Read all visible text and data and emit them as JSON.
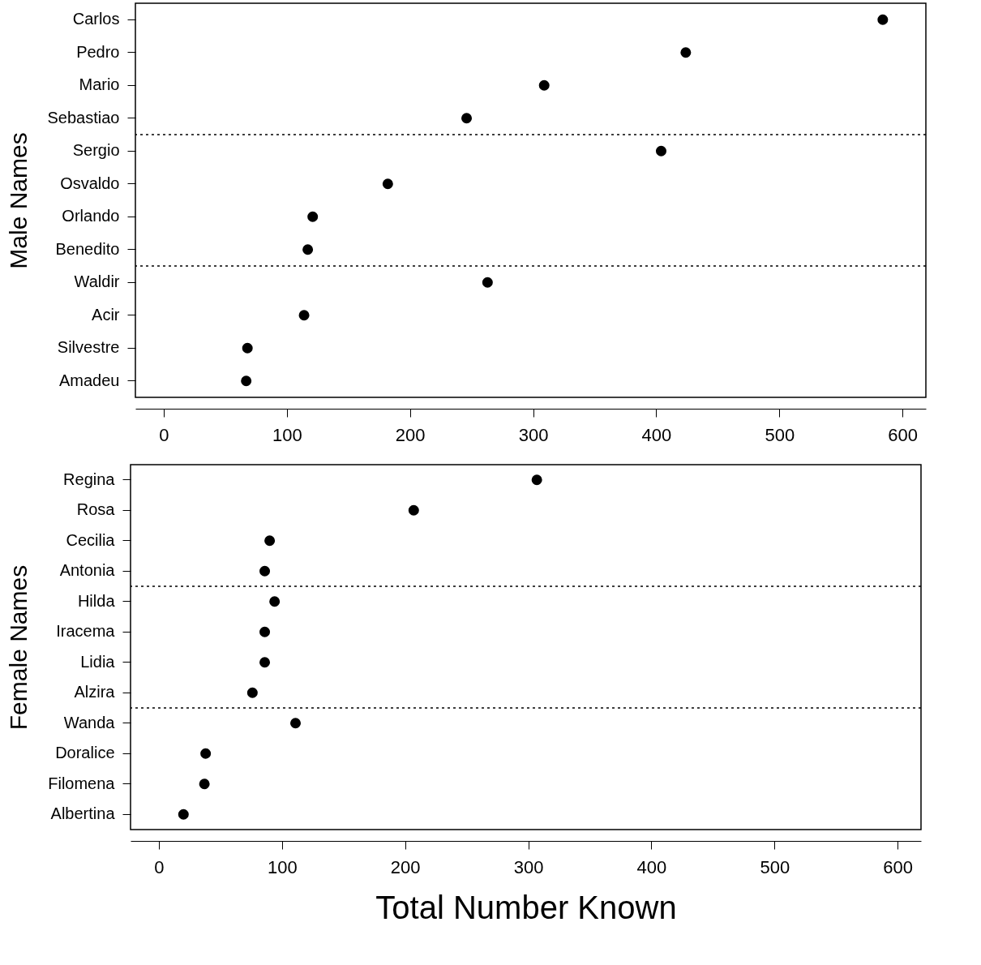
{
  "chart_data": [
    {
      "type": "scatter",
      "orientation": "horizontal",
      "ylabel": "Male Names",
      "categories": [
        "Carlos",
        "Pedro",
        "Mario",
        "Sebastiao",
        "Sergio",
        "Osvaldo",
        "Orlando",
        "Benedito",
        "Waldir",
        "Acir",
        "Silvestre",
        "Amadeu"
      ],
      "series": [
        {
          "color": "#000000",
          "values": [
            584,
            424,
            309,
            246,
            404,
            182,
            121,
            117,
            263,
            114,
            68,
            67
          ]
        }
      ],
      "xlim": [
        -23,
        619
      ],
      "xticks": [
        0,
        100,
        200,
        300,
        400,
        500,
        600
      ],
      "marker": "circle",
      "grid": false
    },
    {
      "type": "scatter",
      "orientation": "horizontal",
      "ylabel": "Female Names",
      "xlabel": "Total Number Known",
      "categories": [
        "Regina",
        "Rosa",
        "Cecilia",
        "Antonia",
        "Hilda",
        "Iracema",
        "Lidia",
        "Alzira",
        "Wanda",
        "Doralice",
        "Filomena",
        "Albertina"
      ],
      "series": [
        {
          "color": "#000000",
          "values": [
            307,
            207,
            90,
            86,
            94,
            86,
            86,
            76,
            111,
            38,
            37,
            20
          ]
        }
      ],
      "xlim": [
        -23,
        619
      ],
      "xticks": [
        0,
        100,
        200,
        300,
        400,
        500,
        600
      ],
      "marker": "circle",
      "grid": false
    }
  ]
}
